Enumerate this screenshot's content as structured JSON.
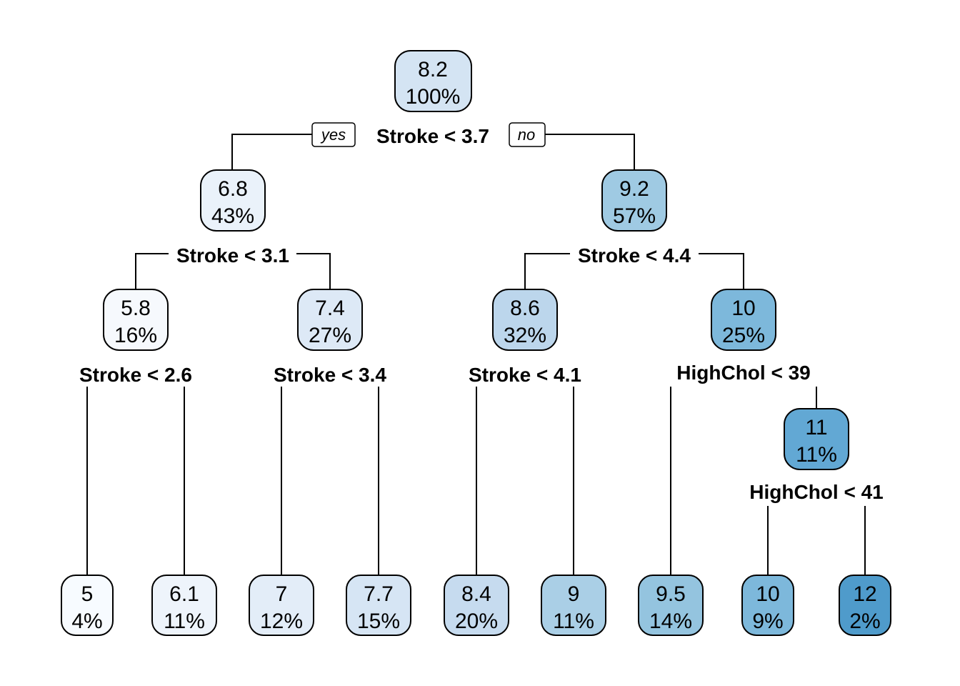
{
  "tree": {
    "branch_tags": {
      "yes": "yes",
      "no": "no"
    },
    "nodes": [
      {
        "id": "n1",
        "value": "8.2",
        "pct": "100%",
        "fill": "#d4e4f3"
      },
      {
        "id": "n2",
        "value": "6.8",
        "pct": "43%",
        "fill": "#eaf2fa"
      },
      {
        "id": "n3",
        "value": "9.2",
        "pct": "57%",
        "fill": "#9fcae3"
      },
      {
        "id": "n4",
        "value": "5.8",
        "pct": "16%",
        "fill": "#f6f9fd"
      },
      {
        "id": "n5",
        "value": "7.4",
        "pct": "27%",
        "fill": "#dde9f6"
      },
      {
        "id": "n6",
        "value": "8.6",
        "pct": "32%",
        "fill": "#bcd6ec"
      },
      {
        "id": "n7",
        "value": "10",
        "pct": "25%",
        "fill": "#7db8db"
      },
      {
        "id": "n8",
        "value": "11",
        "pct": "11%",
        "fill": "#62a8d4"
      },
      {
        "id": "l1",
        "value": "5",
        "pct": "4%",
        "fill": "#f7fbff"
      },
      {
        "id": "l2",
        "value": "6.1",
        "pct": "11%",
        "fill": "#eef4fb"
      },
      {
        "id": "l3",
        "value": "7",
        "pct": "12%",
        "fill": "#e3edf8"
      },
      {
        "id": "l4",
        "value": "7.7",
        "pct": "15%",
        "fill": "#d6e5f4"
      },
      {
        "id": "l5",
        "value": "8.4",
        "pct": "20%",
        "fill": "#c6dbef"
      },
      {
        "id": "l6",
        "value": "9",
        "pct": "11%",
        "fill": "#aacfe6"
      },
      {
        "id": "l7",
        "value": "9.5",
        "pct": "14%",
        "fill": "#94c4df"
      },
      {
        "id": "l8",
        "value": "10",
        "pct": "9%",
        "fill": "#7db8db"
      },
      {
        "id": "l9",
        "value": "12",
        "pct": "2%",
        "fill": "#4f9bcb"
      }
    ],
    "splits": [
      {
        "id": "s1",
        "label": "Stroke < 3.7"
      },
      {
        "id": "s2",
        "label": "Stroke < 3.1"
      },
      {
        "id": "s3",
        "label": "Stroke < 4.4"
      },
      {
        "id": "s4",
        "label": "Stroke < 2.6"
      },
      {
        "id": "s5",
        "label": "Stroke < 3.4"
      },
      {
        "id": "s6",
        "label": "Stroke < 4.1"
      },
      {
        "id": "s7",
        "label": "HighChol < 39"
      },
      {
        "id": "s8",
        "label": "HighChol < 41"
      }
    ]
  }
}
